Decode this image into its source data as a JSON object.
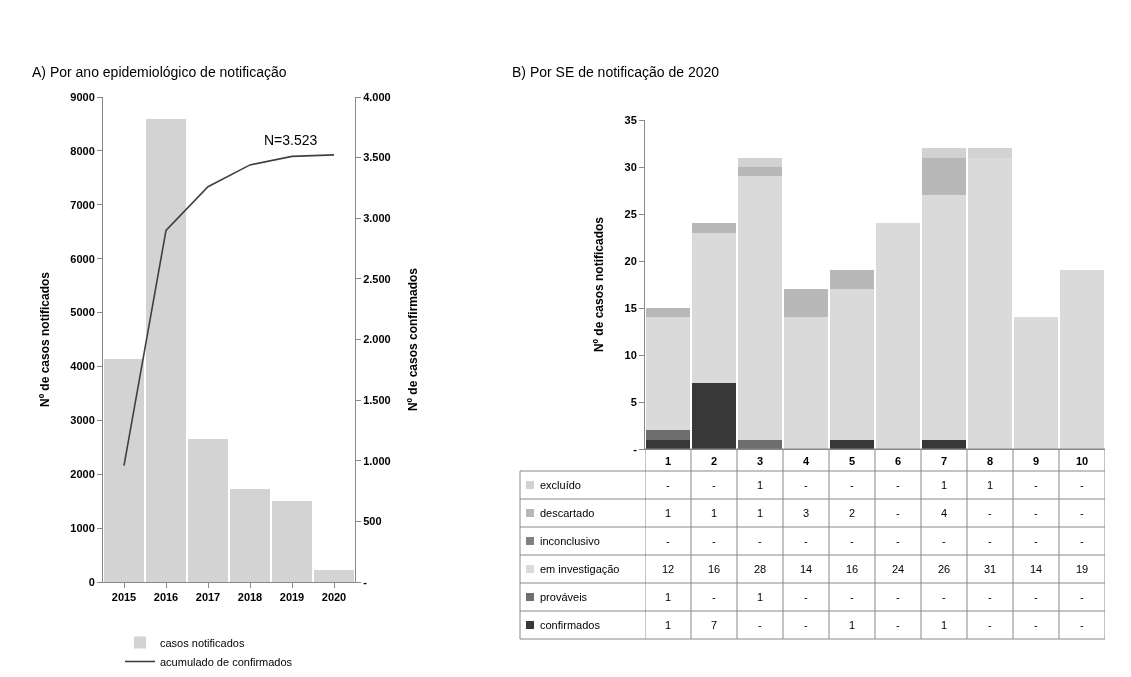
{
  "chart_data": [
    {
      "type": "bar",
      "title": "A) Por ano epidemiológico de notificação",
      "categories": [
        "2015",
        "2016",
        "2017",
        "2018",
        "2019",
        "2020"
      ],
      "series": [
        {
          "name": "casos notificados",
          "type": "bar",
          "color": "#d3d3d3",
          "values": [
            4140,
            8600,
            2660,
            1730,
            1500,
            220
          ]
        },
        {
          "name": "acumulado de confirmados",
          "type": "line",
          "axis": "y2",
          "color": "#404040",
          "values": [
            960,
            2900,
            3260,
            3440,
            3510,
            3523
          ]
        }
      ],
      "ylabel": "Nº de casos notificados",
      "y2label": "Nº de casos confirmados",
      "ylim": [
        0,
        9000
      ],
      "yticks": [
        0,
        1000,
        2000,
        3000,
        4000,
        5000,
        6000,
        7000,
        8000,
        9000
      ],
      "y2lim": [
        0,
        4000
      ],
      "y2ticks": [
        {
          "value": 0,
          "label": "-"
        },
        500,
        {
          "value": 1000,
          "label": "1.000"
        },
        {
          "value": 1500,
          "label": "1.500"
        },
        {
          "value": 2000,
          "label": "2.000"
        },
        {
          "value": 2500,
          "label": "2.500"
        },
        {
          "value": 3000,
          "label": "3.000"
        },
        {
          "value": 3500,
          "label": "3.500"
        },
        {
          "value": 4000,
          "label": "4.000"
        }
      ],
      "annotations": [
        "N=3.523"
      ],
      "legend": "bottom",
      "marker": "none"
    },
    {
      "type": "bar",
      "stacked": true,
      "title": "B) Por SE de notificação de 2020",
      "categories": [
        "1",
        "2",
        "3",
        "4",
        "5",
        "6",
        "7",
        "8",
        "9",
        "10"
      ],
      "series": [
        {
          "name": "confirmados",
          "color": "#383838",
          "values": [
            1,
            7,
            0,
            0,
            1,
            0,
            1,
            0,
            0,
            0
          ],
          "value_labels": [
            "1",
            "7",
            "-",
            "-",
            "1",
            "-",
            "1",
            "-",
            "-",
            "-"
          ]
        },
        {
          "name": "prováveis",
          "color": "#6e6e6e",
          "values": [
            1,
            0,
            1,
            0,
            0,
            0,
            0,
            0,
            0,
            0
          ],
          "value_labels": [
            "1",
            "-",
            "1",
            "-",
            "-",
            "-",
            "-",
            "-",
            "-",
            "-"
          ]
        },
        {
          "name": "em investigação",
          "color": "#dadada",
          "values": [
            12,
            16,
            28,
            14,
            16,
            24,
            26,
            31,
            14,
            19
          ],
          "value_labels": [
            "12",
            "16",
            "28",
            "14",
            "16",
            "24",
            "26",
            "31",
            "14",
            "19"
          ]
        },
        {
          "name": "inconclusivo",
          "color": "#808080",
          "values": [
            0,
            0,
            0,
            0,
            0,
            0,
            0,
            0,
            0,
            0
          ],
          "value_labels": [
            "-",
            "-",
            "-",
            "-",
            "-",
            "-",
            "-",
            "-",
            "-",
            "-"
          ]
        },
        {
          "name": "descartado",
          "color": "#b8b8b8",
          "values": [
            1,
            1,
            1,
            3,
            2,
            0,
            4,
            0,
            0,
            0
          ],
          "value_labels": [
            "1",
            "1",
            "1",
            "3",
            "2",
            "-",
            "4",
            "-",
            "-",
            "-"
          ]
        },
        {
          "name": "excluído",
          "color": "#d2d2d2",
          "values": [
            0,
            0,
            1,
            0,
            0,
            0,
            1,
            1,
            0,
            0
          ],
          "value_labels": [
            "-",
            "-",
            "1",
            "-",
            "-",
            "-",
            "1",
            "1",
            "-",
            "-"
          ]
        }
      ],
      "ylabel": "Nº de casos notificados",
      "ylim": [
        0,
        35
      ],
      "yticks": [
        {
          "value": 0,
          "label": "-"
        },
        5,
        10,
        15,
        20,
        25,
        30,
        35
      ],
      "legend": "bottom left"
    }
  ]
}
